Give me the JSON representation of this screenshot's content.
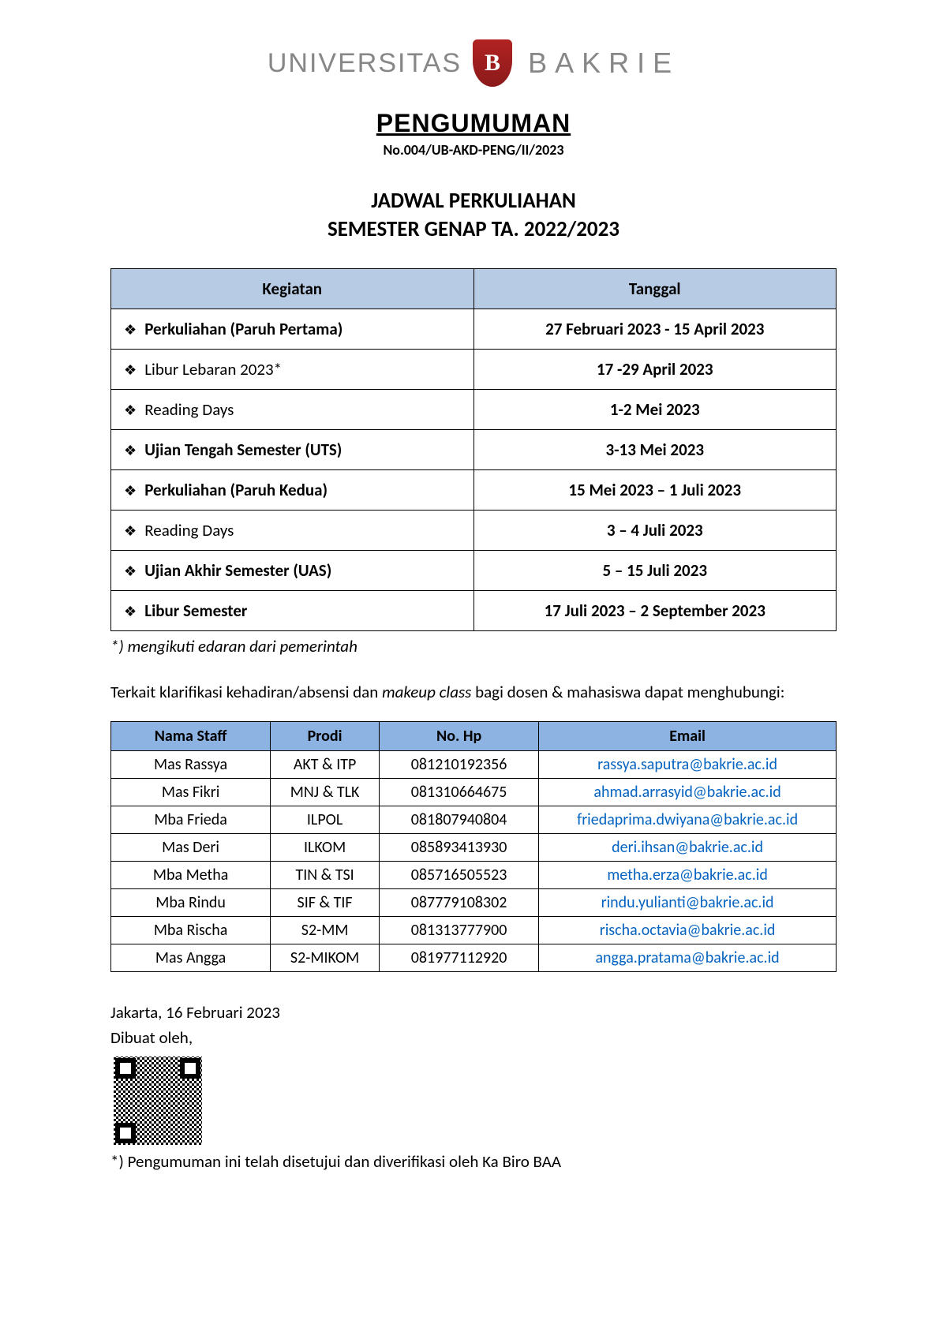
{
  "logo": {
    "univ": "UNIVERSITAS",
    "letter": "B",
    "name": "BAKRIE"
  },
  "title": "PENGUMUMAN",
  "docnum": "No.004/UB-AKD-PENG/II/2023",
  "subtitle1": "JADWAL PERKULIAHAN",
  "subtitle2": "SEMESTER GENAP TA. 2022/2023",
  "schedule": {
    "header_activity": "Kegiatan",
    "header_date": "Tanggal",
    "rows": [
      {
        "activity": "Perkuliahan (Paruh Pertama)",
        "bold": true,
        "date": "27 Februari 2023 - 15 April 2023"
      },
      {
        "activity": "Libur Lebaran 2023*",
        "bold": false,
        "date": "17 -29 April 2023"
      },
      {
        "activity": "Reading Days",
        "bold": false,
        "date": "1-2 Mei 2023"
      },
      {
        "activity": "Ujian Tengah Semester (UTS)",
        "bold": true,
        "date": "3-13 Mei 2023"
      },
      {
        "activity": "Perkuliahan (Paruh Kedua)",
        "bold": true,
        "date": "15 Mei 2023 – 1 Juli 2023"
      },
      {
        "activity": "Reading Days",
        "bold": false,
        "date": "3 – 4 Juli 2023"
      },
      {
        "activity": "Ujian Akhir Semester (UAS)",
        "bold": true,
        "date": "5 – 15 Juli 2023"
      },
      {
        "activity": "Libur Semester",
        "bold": true,
        "date": "17 Juli 2023 – 2 September 2023"
      }
    ]
  },
  "footnote1": "*) mengikuti edaran dari pemerintah",
  "intro_pre": "Terkait klarifikasi kehadiran/absensi dan ",
  "intro_em": "makeup class",
  "intro_post": " bagi dosen & mahasiswa dapat menghubungi:",
  "contacts": {
    "headers": {
      "name": "Nama Staff",
      "prodi": "Prodi",
      "phone": "No. Hp",
      "email": "Email"
    },
    "rows": [
      {
        "name": "Mas Rassya",
        "prodi": "AKT & ITP",
        "phone": "081210192356",
        "email": "rassya.saputra@bakrie.ac.id"
      },
      {
        "name": "Mas Fikri",
        "prodi": "MNJ & TLK",
        "phone": "081310664675",
        "email": "ahmad.arrasyid@bakrie.ac.id"
      },
      {
        "name": "Mba Frieda",
        "prodi": "ILPOL",
        "phone": "081807940804",
        "email": "friedaprima.dwiyana@bakrie.ac.id"
      },
      {
        "name": "Mas Deri",
        "prodi": "ILKOM",
        "phone": "085893413930",
        "email": "deri.ihsan@bakrie.ac.id"
      },
      {
        "name": "Mba Metha",
        "prodi": "TIN & TSI",
        "phone": "085716505523",
        "email": "metha.erza@bakrie.ac.id"
      },
      {
        "name": "Mba Rindu",
        "prodi": "SIF & TIF",
        "phone": "087779108302",
        "email": "rindu.yulianti@bakrie.ac.id"
      },
      {
        "name": "Mba Rischa",
        "prodi": "S2-MM",
        "phone": "081313777900",
        "email": "rischa.octavia@bakrie.ac.id"
      },
      {
        "name": "Mas Angga",
        "prodi": "S2-MIKOM",
        "phone": "081977112920",
        "email": "angga.pratama@bakrie.ac.id"
      }
    ]
  },
  "sign": {
    "place_date": "Jakarta, 16 Februari 2023",
    "made_by": "Dibuat oleh,"
  },
  "footnote2": " *) Pengumuman ini telah disetujui dan diverifikasi oleh Ka Biro BAA",
  "colors": {
    "header_bg_schedule": "#b7cce4",
    "header_bg_contacts": "#8cb3e2",
    "link": "#0563c1",
    "logo_gray": "#878787",
    "shield": "#b22222"
  }
}
